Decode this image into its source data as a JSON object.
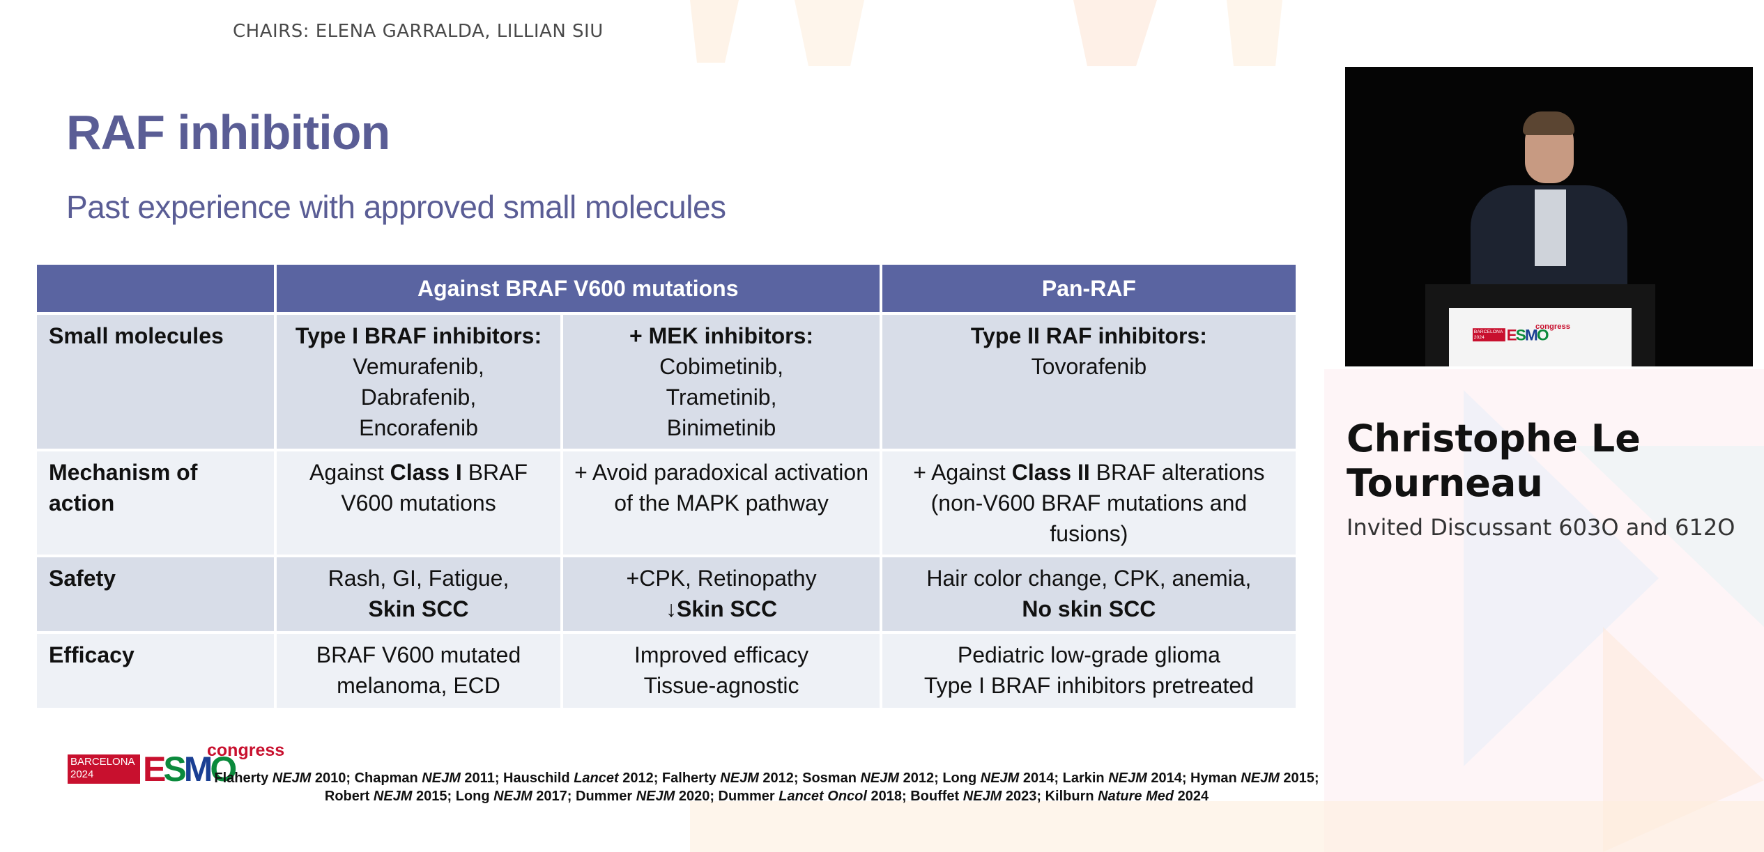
{
  "header": {
    "chairs": "CHAIRS: ELENA GARRALDA, LILLIAN SIU"
  },
  "slide": {
    "title": "RAF inhibition",
    "subtitle": "Past experience with approved small molecules"
  },
  "table": {
    "headers": [
      "",
      "Against BRAF V600 mutations",
      "Pan-RAF"
    ],
    "small_molecules": {
      "label": "Small molecules",
      "col1_title": "Type I BRAF inhibitors:",
      "col1_lines": [
        "Vemurafenib,",
        "Dabrafenib,",
        "Encorafenib"
      ],
      "col2_title": "+ MEK inhibitors:",
      "col2_lines": [
        "Cobimetinib,",
        "Trametinib,",
        "Binimetinib"
      ],
      "col3_title": "Type II RAF inhibitors:",
      "col3_lines": [
        "Tovorafenib"
      ]
    },
    "mechanism": {
      "label": "Mechanism of action",
      "col1_pre": "Against ",
      "col1_bold": "Class I",
      "col1_post": " BRAF",
      "col1_line2": "V600 mutations",
      "col2_line1": "+ Avoid paradoxical activation",
      "col2_line2": "of the MAPK pathway",
      "col3_pre": "+ Against ",
      "col3_bold": "Class II",
      "col3_post": " BRAF alterations",
      "col3_line2": "(non-V600 BRAF mutations and fusions)"
    },
    "safety": {
      "label": "Safety",
      "col1_line1": "Rash, GI, Fatigue,",
      "col1_line2": "Skin SCC",
      "col2_line1": "+CPK, Retinopathy",
      "col2_line2": "↓Skin SCC",
      "col3_line1": "Hair color change, CPK, anemia,",
      "col3_line2": "No skin SCC"
    },
    "efficacy": {
      "label": "Efficacy",
      "col1_line1": "BRAF V600 mutated",
      "col1_line2": "melanoma, ECD",
      "col2_line1": "Improved efficacy",
      "col2_line2": "Tissue-agnostic",
      "col3_line1": "Pediatric low-grade glioma",
      "col3_line2": "Type I BRAF inhibitors pretreated"
    }
  },
  "logo": {
    "city_year_line1": "BARCELONA",
    "city_year_line2": "2024",
    "esmo_e": "E",
    "esmo_s": "S",
    "esmo_m": "M",
    "esmo_o": "O",
    "congress": "congress"
  },
  "references": [
    {
      "author": "Flaherty ",
      "journal": "NEJM",
      "year": " 2010; "
    },
    {
      "author": "Chapman ",
      "journal": "NEJM",
      "year": " 2011; "
    },
    {
      "author": "Hauschild ",
      "journal": "Lancet",
      "year": " 2012; "
    },
    {
      "author": "Falherty ",
      "journal": "NEJM",
      "year": " 2012; "
    },
    {
      "author": "Sosman ",
      "journal": "NEJM",
      "year": " 2012; "
    },
    {
      "author": "Long ",
      "journal": "NEJM",
      "year": " 2014; "
    },
    {
      "author": "Larkin ",
      "journal": "NEJM",
      "year": " 2014;  "
    },
    {
      "author": "Hyman ",
      "journal": "NEJM",
      "year": " 2015; "
    },
    {
      "author": "Robert ",
      "journal": "NEJM",
      "year": " 2015; "
    },
    {
      "author": "Long ",
      "journal": "NEJM",
      "year": " 2017; "
    },
    {
      "author": "Dummer ",
      "journal": "NEJM",
      "year": " 2020; "
    },
    {
      "author": "Dummer ",
      "journal": "Lancet Oncol",
      "year": " 2018; "
    },
    {
      "author": "Bouffet ",
      "journal": "NEJM",
      "year": " 2023; "
    },
    {
      "author": "Kilburn ",
      "journal": "Nature Med",
      "year": " 2024"
    }
  ],
  "speaker": {
    "name": "Christophe Le Tourneau",
    "role": "Invited Discussant 603O and 612O"
  }
}
